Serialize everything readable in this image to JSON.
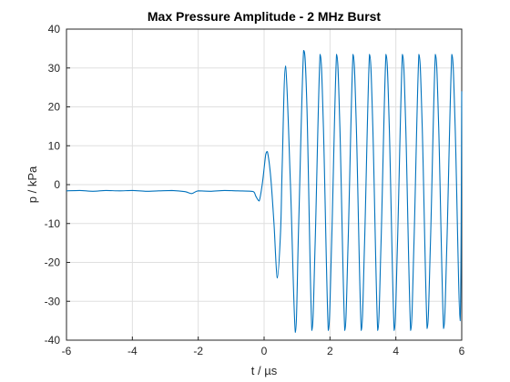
{
  "chart_data": {
    "type": "line",
    "title": "Max Pressure Amplitude - 2 MHz Burst",
    "xlabel": "t / µs",
    "ylabel": "p / kPa",
    "xlim": [
      -6,
      6
    ],
    "ylim": [
      -40,
      40
    ],
    "xticks": [
      -6,
      -4,
      -2,
      0,
      2,
      4,
      6
    ],
    "yticks": [
      -40,
      -30,
      -20,
      -10,
      0,
      10,
      20,
      30,
      40
    ],
    "grid": true,
    "series": [
      {
        "color": "#0072bd",
        "x": [
          -6.0,
          -5.6,
          -5.2,
          -4.8,
          -4.4,
          -4.0,
          -3.6,
          -3.2,
          -2.8,
          -2.4,
          -2.2,
          -2.0,
          -1.6,
          -1.2,
          -0.8,
          -0.4,
          -0.3,
          -0.25,
          -0.15,
          -0.05,
          0.05,
          0.1,
          0.2,
          0.3,
          0.4,
          0.5,
          0.55,
          0.65,
          0.8,
          0.95,
          1.05,
          1.2,
          1.3,
          1.45,
          1.55,
          1.7,
          1.8,
          1.95,
          2.05,
          2.2,
          2.3,
          2.45,
          2.55,
          2.7,
          2.8,
          2.95,
          3.05,
          3.2,
          3.3,
          3.45,
          3.55,
          3.7,
          3.8,
          3.95,
          4.05,
          4.2,
          4.3,
          4.45,
          4.55,
          4.7,
          4.8,
          4.95,
          5.05,
          5.2,
          5.3,
          5.45,
          5.55,
          5.7,
          5.8,
          5.95,
          6.0
        ],
        "y": [
          -1.6,
          -1.5,
          -1.7,
          -1.5,
          -1.6,
          -1.5,
          -1.7,
          -1.6,
          -1.5,
          -1.8,
          -2.3,
          -1.6,
          -1.7,
          -1.5,
          -1.6,
          -1.7,
          -2.0,
          -3.0,
          -4.2,
          0.5,
          7.8,
          8.5,
          2.0,
          -10.0,
          -24.0,
          -12.0,
          5.0,
          30.5,
          0.0,
          -38.0,
          -10.0,
          34.5,
          20.0,
          -37.5,
          -15.0,
          33.5,
          15.0,
          -37.5,
          -15.0,
          33.5,
          15.0,
          -37.5,
          -15.0,
          33.5,
          15.0,
          -37.5,
          -15.0,
          33.5,
          15.0,
          -37.5,
          -15.0,
          33.5,
          15.0,
          -37.5,
          -15.0,
          33.5,
          15.0,
          -37.5,
          -15.0,
          33.5,
          15.0,
          -37.0,
          -15.0,
          33.5,
          15.0,
          -37.0,
          -15.0,
          33.5,
          15.0,
          -35.0,
          24.0
        ]
      }
    ]
  }
}
